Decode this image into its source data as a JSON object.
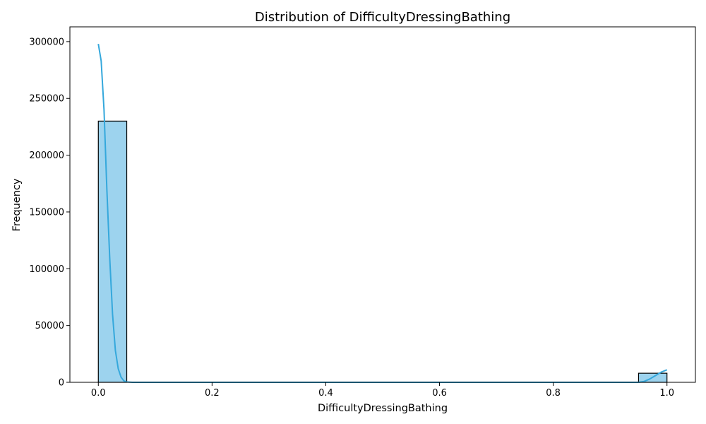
{
  "chart_data": {
    "type": "bar",
    "subtype": "histogram",
    "title": "Distribution of DifficultyDressingBathing",
    "xlabel": "DifficultyDressingBathing",
    "ylabel": "Frequency",
    "xlim": [
      -0.05,
      1.05
    ],
    "ylim": [
      0,
      313000
    ],
    "xticks": [
      0.0,
      0.2,
      0.4,
      0.6,
      0.8,
      1.0
    ],
    "xtick_labels": [
      "0.0",
      "0.2",
      "0.4",
      "0.6",
      "0.8",
      "1.0"
    ],
    "yticks": [
      0,
      50000,
      100000,
      150000,
      200000,
      250000,
      300000
    ],
    "ytick_labels": [
      "0",
      "50000",
      "100000",
      "150000",
      "200000",
      "250000",
      "300000"
    ],
    "bins": [
      {
        "x0": 0.0,
        "x1": 0.05,
        "count": 230000
      },
      {
        "x0": 0.95,
        "x1": 1.0,
        "count": 8000
      }
    ],
    "kde": {
      "x": [
        0.0,
        0.005,
        0.01,
        0.015,
        0.02,
        0.025,
        0.03,
        0.035,
        0.04,
        0.045,
        0.05,
        0.06,
        0.08,
        0.1,
        0.9,
        0.95,
        0.96,
        0.97,
        0.98,
        0.99,
        1.0
      ],
      "y": [
        298000,
        283000,
        240000,
        170000,
        110000,
        60000,
        28000,
        12000,
        4500,
        1200,
        300,
        0,
        0,
        0,
        0,
        0,
        800,
        3000,
        6000,
        9000,
        11000
      ]
    },
    "grid": false,
    "legend": "none",
    "colors": {
      "bar_fill": "#9dd3ee",
      "bar_edge": "#000000",
      "kde_line": "#35a8dc"
    }
  }
}
